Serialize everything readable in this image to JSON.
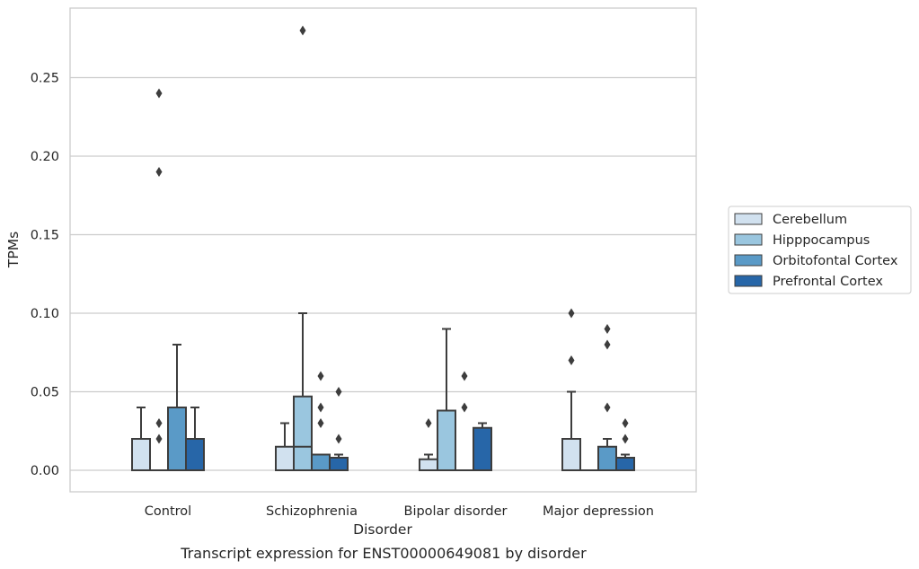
{
  "chart_data": {
    "type": "box",
    "title": "",
    "caption": "Transcript expression for ENST00000649081 by disorder",
    "xlabel": "Disorder",
    "ylabel": "TPMs",
    "ylim": [
      -0.014,
      0.294
    ],
    "yticks": [
      "0.00",
      "0.05",
      "0.10",
      "0.15",
      "0.20",
      "0.25"
    ],
    "grid": "horizontal",
    "legend_placement": "right",
    "categories": [
      "Control",
      "Schizophrenia",
      "Bipolar disorder",
      "Major depression"
    ],
    "series": [
      {
        "name": "Cerebellum",
        "color": "#d1e1ef",
        "boxes": [
          {
            "q1": 0.0,
            "median": 0.0,
            "q3": 0.02,
            "whisker_low": 0.0,
            "whisker_high": 0.04,
            "outliers": []
          },
          {
            "q1": 0.0,
            "median": 0.0,
            "q3": 0.015,
            "whisker_low": 0.0,
            "whisker_high": 0.03,
            "outliers": []
          },
          {
            "q1": 0.0,
            "median": 0.0,
            "q3": 0.007,
            "whisker_low": 0.0,
            "whisker_high": 0.01,
            "outliers": [
              0.03
            ]
          },
          {
            "q1": 0.0,
            "median": 0.0,
            "q3": 0.02,
            "whisker_low": 0.0,
            "whisker_high": 0.05,
            "outliers": [
              0.07,
              0.1
            ]
          }
        ]
      },
      {
        "name": "Hipppocampus",
        "color": "#9ac6df",
        "boxes": [
          {
            "q1": 0.0,
            "median": 0.0,
            "q3": 0.0,
            "whisker_low": 0.0,
            "whisker_high": 0.0,
            "outliers": [
              0.02,
              0.03,
              0.19,
              0.24
            ]
          },
          {
            "q1": 0.0,
            "median": 0.015,
            "q3": 0.047,
            "whisker_low": 0.0,
            "whisker_high": 0.1,
            "outliers": [
              0.28
            ]
          },
          {
            "q1": 0.0,
            "median": 0.0,
            "q3": 0.038,
            "whisker_low": 0.0,
            "whisker_high": 0.09,
            "outliers": []
          },
          {
            "q1": 0.0,
            "median": 0.0,
            "q3": 0.0,
            "whisker_low": 0.0,
            "whisker_high": 0.0,
            "outliers": []
          }
        ]
      },
      {
        "name": "Orbitofontal Cortex",
        "color": "#5a9ac7",
        "boxes": [
          {
            "q1": 0.0,
            "median": 0.0,
            "q3": 0.04,
            "whisker_low": 0.0,
            "whisker_high": 0.08,
            "outliers": []
          },
          {
            "q1": 0.0,
            "median": 0.0,
            "q3": 0.01,
            "whisker_low": 0.0,
            "whisker_high": 0.01,
            "outliers": [
              0.03,
              0.04,
              0.06
            ]
          },
          {
            "q1": 0.0,
            "median": 0.0,
            "q3": 0.0,
            "whisker_low": 0.0,
            "whisker_high": 0.0,
            "outliers": [
              0.04,
              0.06
            ]
          },
          {
            "q1": 0.0,
            "median": 0.0,
            "q3": 0.015,
            "whisker_low": 0.0,
            "whisker_high": 0.02,
            "outliers": [
              0.04,
              0.08,
              0.09
            ]
          }
        ]
      },
      {
        "name": "Prefrontal Cortex",
        "color": "#2766a8",
        "boxes": [
          {
            "q1": 0.0,
            "median": 0.0,
            "q3": 0.02,
            "whisker_low": 0.0,
            "whisker_high": 0.04,
            "outliers": []
          },
          {
            "q1": 0.0,
            "median": 0.0,
            "q3": 0.008,
            "whisker_low": 0.0,
            "whisker_high": 0.01,
            "outliers": [
              0.02,
              0.05
            ]
          },
          {
            "q1": 0.0,
            "median": 0.0,
            "q3": 0.027,
            "whisker_low": 0.0,
            "whisker_high": 0.03,
            "outliers": []
          },
          {
            "q1": 0.0,
            "median": 0.0,
            "q3": 0.008,
            "whisker_low": 0.0,
            "whisker_high": 0.01,
            "outliers": [
              0.02,
              0.03
            ]
          }
        ]
      }
    ]
  }
}
